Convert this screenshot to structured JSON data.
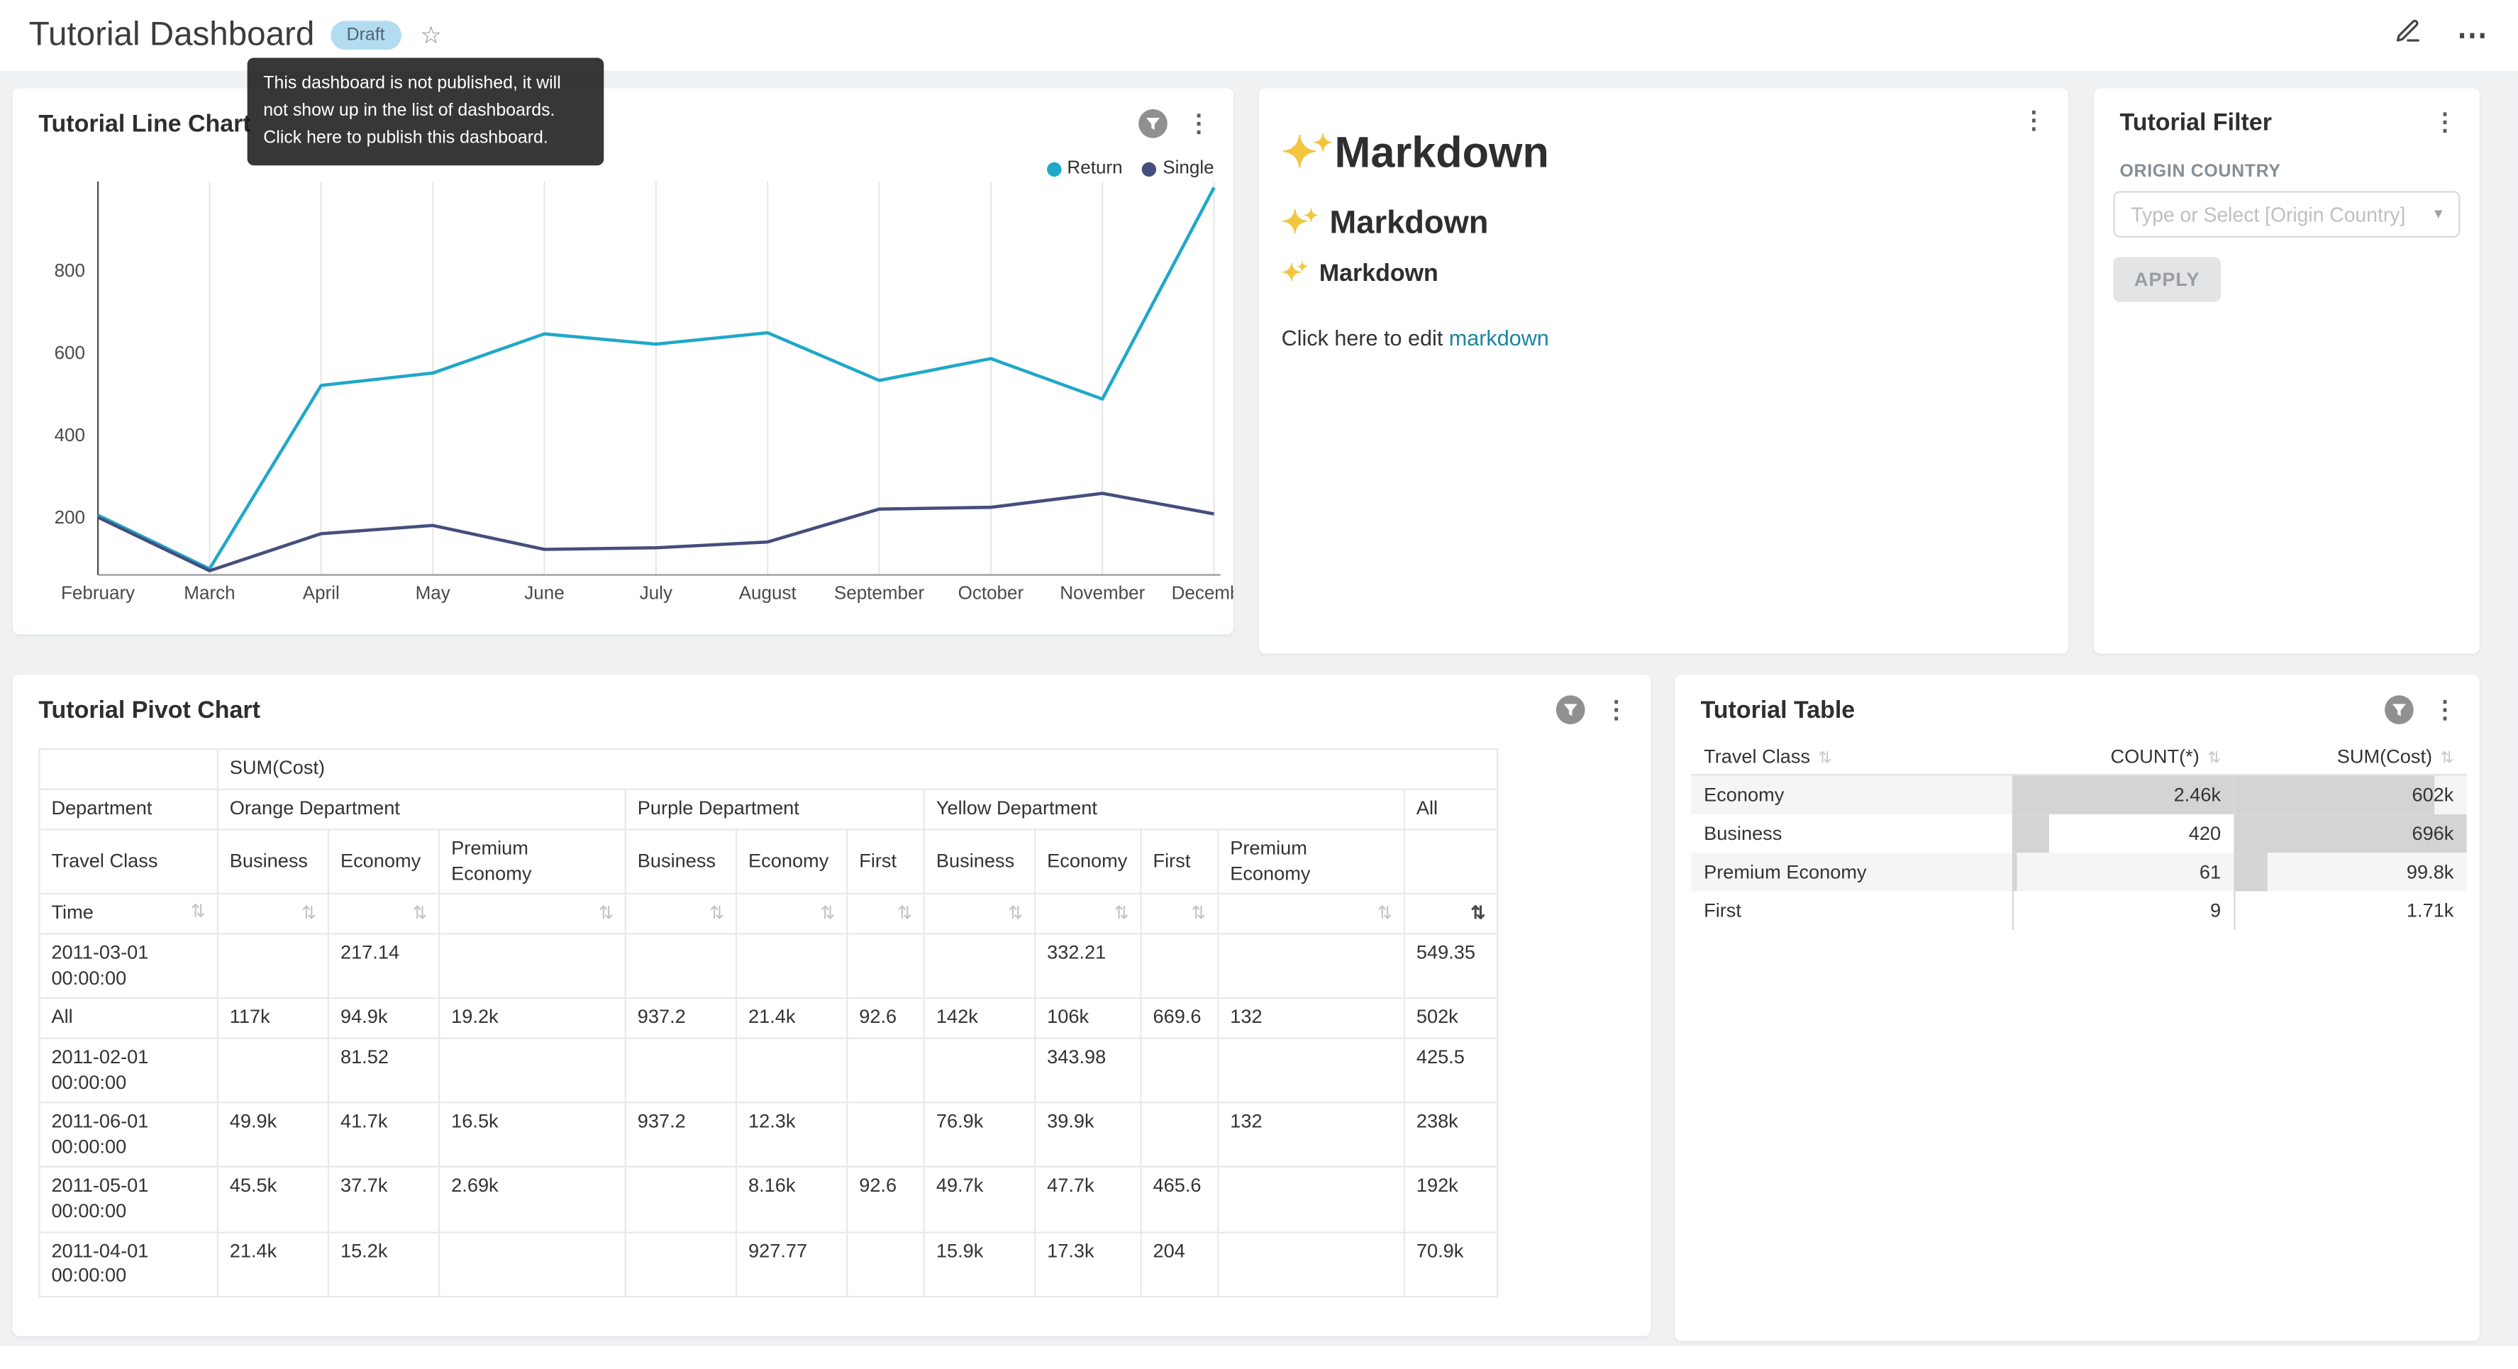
{
  "icons": {
    "kebab": "⋮",
    "ellipsis": "⋯",
    "star": "☆",
    "sort": "⇅",
    "caret_down": "▾",
    "sparkle": "✦"
  },
  "header": {
    "title": "Tutorial Dashboard",
    "badge": "Draft",
    "tooltip": "This dashboard is not published, it will not show up in the list of dashboards. Click here to publish this dashboard."
  },
  "line_chart_card": {
    "title": "Tutorial Line Chart",
    "chart_data": {
      "type": "line",
      "categories": [
        "February",
        "March",
        "April",
        "May",
        "June",
        "July",
        "August",
        "September",
        "October",
        "November",
        "December"
      ],
      "series": [
        {
          "name": "Return",
          "color": "#1FA8C9",
          "values": [
            205,
            75,
            520,
            550,
            645,
            620,
            648,
            532,
            585,
            487,
            1000
          ]
        },
        {
          "name": "Single",
          "color": "#454E7C",
          "values": [
            200,
            70,
            160,
            180,
            122,
            126,
            140,
            220,
            224,
            258,
            208
          ]
        }
      ],
      "yticks": [
        200,
        400,
        600,
        800
      ],
      "ylim": [
        60,
        1015
      ],
      "grid": "vertical",
      "legend_position": "top-right"
    }
  },
  "markdown_card": {
    "h1": "Markdown",
    "h2": "Markdown",
    "h3": "Markdown",
    "paragraph_prefix": "Click here to edit ",
    "link_text": "markdown"
  },
  "filter_card": {
    "title": "Tutorial Filter",
    "field_label": "ORIGIN COUNTRY",
    "select_placeholder": "Type or Select [Origin Country]",
    "apply_label": "APPLY"
  },
  "pivot_card": {
    "title": "Tutorial Pivot Chart",
    "chart_data": {
      "type": "table",
      "metric_label": "SUM(Cost)",
      "col_dimension_label": "Department",
      "col_subdimension_label": "Travel Class",
      "row_dimension_label": "Time",
      "col_groups": [
        {
          "label": "Orange Department",
          "cols": [
            "Business",
            "Economy",
            "Premium Economy"
          ]
        },
        {
          "label": "Purple Department",
          "cols": [
            "Business",
            "Economy",
            "First"
          ]
        },
        {
          "label": "Yellow Department",
          "cols": [
            "Business",
            "Economy",
            "First",
            "Premium Economy"
          ]
        },
        {
          "label": "All",
          "cols": [
            ""
          ]
        }
      ],
      "rows": [
        {
          "time": "2011-03-01 00:00:00",
          "values": [
            "",
            "217.14",
            "",
            "",
            "",
            "",
            "",
            "332.21",
            "",
            "",
            "549.35"
          ]
        },
        {
          "time": "All",
          "values": [
            "117k",
            "94.9k",
            "19.2k",
            "937.2",
            "21.4k",
            "92.6",
            "142k",
            "106k",
            "669.6",
            "132",
            "502k"
          ]
        },
        {
          "time": "2011-02-01 00:00:00",
          "values": [
            "",
            "81.52",
            "",
            "",
            "",
            "",
            "",
            "343.98",
            "",
            "",
            "425.5"
          ]
        },
        {
          "time": "2011-06-01 00:00:00",
          "values": [
            "49.9k",
            "41.7k",
            "16.5k",
            "937.2",
            "12.3k",
            "",
            "76.9k",
            "39.9k",
            "",
            "132",
            "238k"
          ]
        },
        {
          "time": "2011-05-01 00:00:00",
          "values": [
            "45.5k",
            "37.7k",
            "2.69k",
            "",
            "8.16k",
            "92.6",
            "49.7k",
            "47.7k",
            "465.6",
            "",
            "192k"
          ]
        },
        {
          "time": "2011-04-01 00:00:00",
          "values": [
            "21.4k",
            "15.2k",
            "",
            "",
            "927.77",
            "",
            "15.9k",
            "17.3k",
            "204",
            "",
            "70.9k"
          ]
        }
      ],
      "sorted_column": "All",
      "sort_direction": "desc"
    }
  },
  "table_card": {
    "title": "Tutorial Table",
    "chart_data": {
      "type": "table",
      "columns": [
        "Travel Class",
        "COUNT(*)",
        "SUM(Cost)"
      ],
      "rows": [
        {
          "travel_class": "Economy",
          "count": "2.46k",
          "count_pct": 100,
          "sum": "602k",
          "sum_pct": 86.5
        },
        {
          "travel_class": "Business",
          "count": "420",
          "count_pct": 17,
          "sum": "696k",
          "sum_pct": 100
        },
        {
          "travel_class": "Premium Economy",
          "count": "61",
          "count_pct": 2.5,
          "sum": "99.8k",
          "sum_pct": 14.3
        },
        {
          "travel_class": "First",
          "count": "9",
          "count_pct": 0.5,
          "sum": "1.71k",
          "sum_pct": 0.3
        }
      ]
    }
  }
}
